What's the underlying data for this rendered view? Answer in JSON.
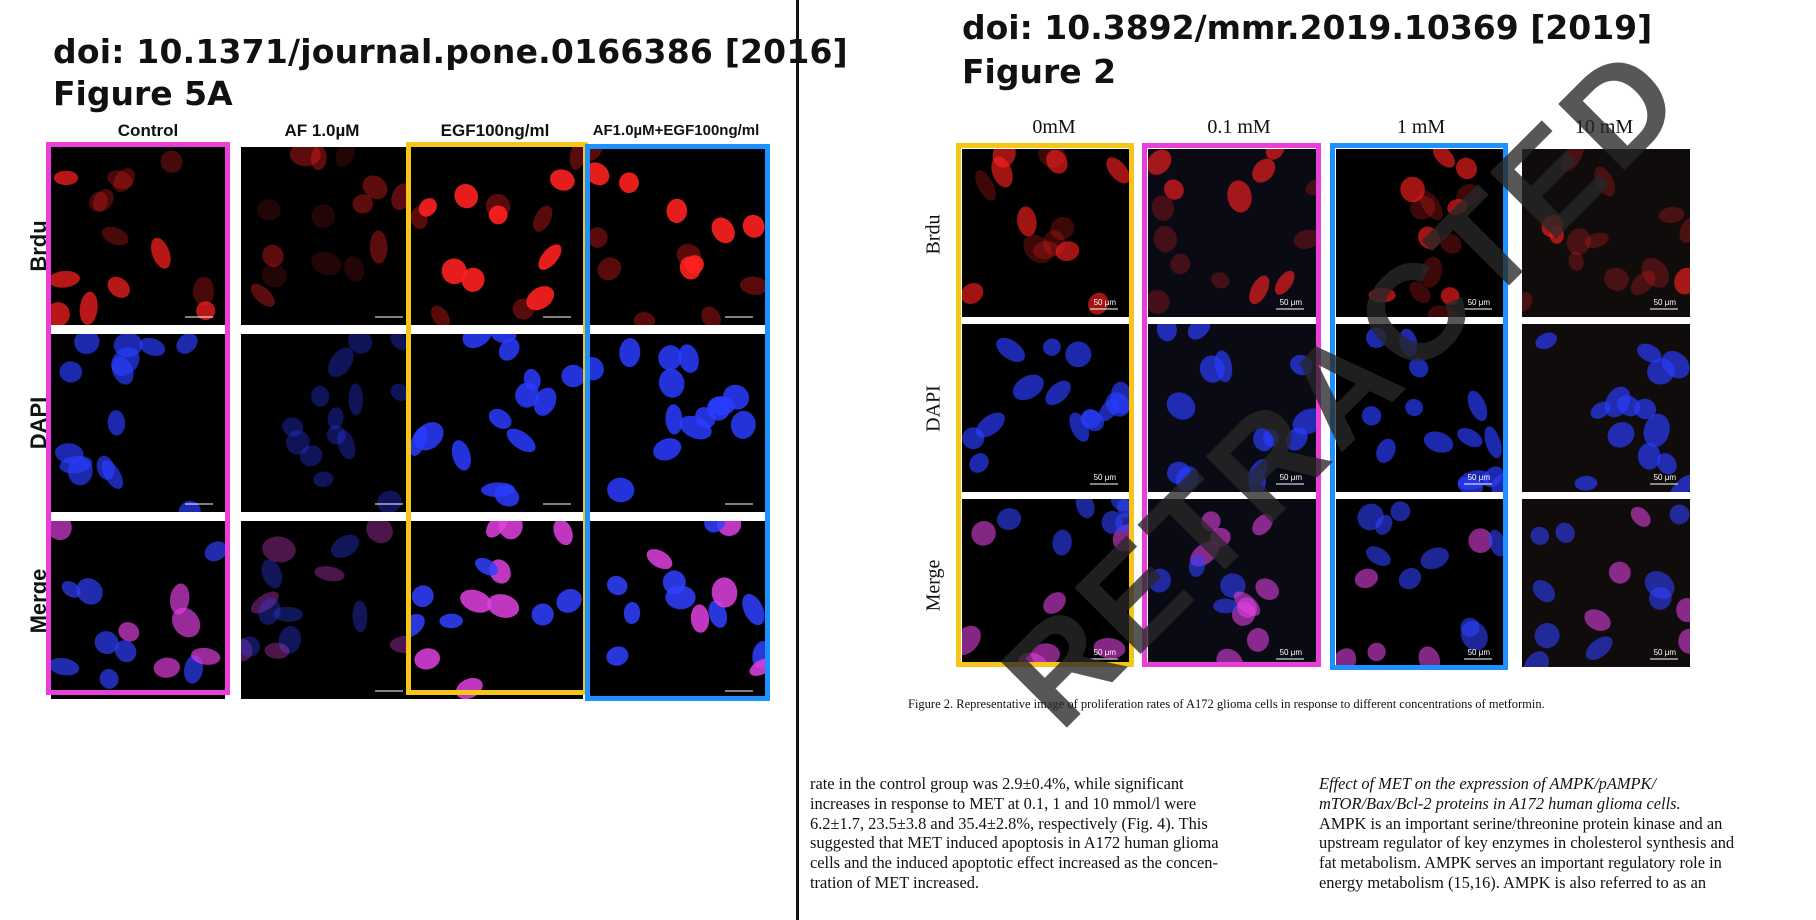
{
  "left": {
    "doi": "doi: 10.1371/journal.pone.0166386 [2016]",
    "figure": "Figure 5A",
    "columns": [
      "Control",
      "AF 1.0µM",
      "EGF100ng/ml",
      "AF1.0µM+EGF100ng/ml"
    ],
    "rows": [
      "Brdu",
      "DAPI",
      "Merge"
    ],
    "frame_colors": {
      "control": "#e83fd8",
      "egf": "#f5c518",
      "combo": "#1e90ff"
    }
  },
  "right": {
    "doi": "doi: 10.3892/mmr.2019.10369 [2019]",
    "figure": "Figure 2",
    "columns": [
      "0mM",
      "0.1 mM",
      "1 mM",
      "10 mM"
    ],
    "rows": [
      "Brdu",
      "DAPI",
      "Merge"
    ],
    "scale_label": "50 μm",
    "frame_colors": {
      "c0": "#f5c518",
      "c1": "#e83fd8",
      "c2": "#1e90ff"
    },
    "caption": "Figure 2. Representative image of proliferation rates of A172 glioma cells in response to different concentrations of metformin.",
    "watermark": "RETRACTED",
    "text_left": [
      "rate in the control group was 2.9±0.4%, while significant",
      "increases in response to MET at 0.1, 1 and 10 mmol/l were",
      "6.2±1.7, 23.5±3.8 and 35.4±2.8%, respectively (Fig. 4). This",
      "suggested that MET induced apoptosis in A172 human glioma",
      "cells and the induced apoptotic effect increased as the concen-",
      "tration of MET increased."
    ],
    "text_right_italic": [
      "Effect of MET on the expression of AMPK/pAMPK/",
      "mTOR/Bax/Bcl-2 proteins in A172 human glioma cells."
    ],
    "text_right": [
      "AMPK is an important serine/threonine protein kinase and an",
      "upstream regulator of key enzymes in cholesterol synthesis and",
      "fat metabolism. AMPK serves an important regulatory role in",
      "energy metabolism (15,16). AMPK is also referred to as an"
    ]
  }
}
